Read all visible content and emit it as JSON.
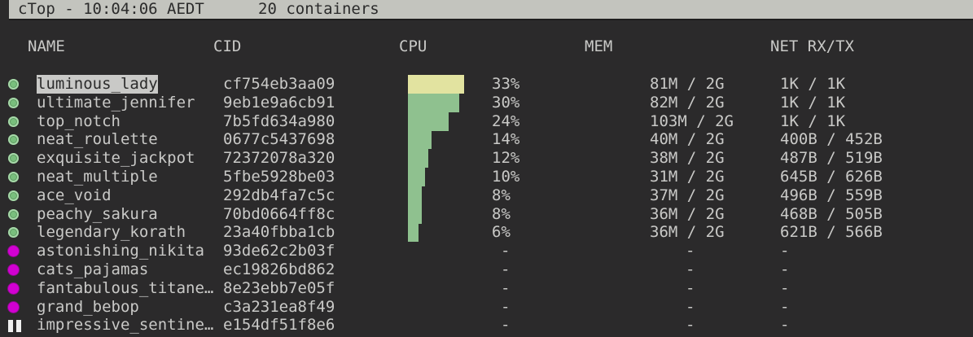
{
  "header": {
    "title": "cTop - 10:04:06 AEDT",
    "count": "20 containers"
  },
  "columns": {
    "name": "NAME",
    "cid": "CID",
    "cpu": "CPU",
    "mem": "MEM",
    "net": "NET RX/TX"
  },
  "colors": {
    "running": "#79bf7d",
    "stopped": "#d200d2",
    "paused": "#f0f0f0",
    "cpu_bar": "#8fc18f",
    "cpu_bar_selected": "#e2e3a0"
  },
  "containers": [
    {
      "status": "running",
      "name": "luminous_lady",
      "cid": "cf754eb3aa09",
      "cpu": "33%",
      "cpu_value": 33,
      "mem": "81M / 2G",
      "net": "1K / 1K",
      "selected": true
    },
    {
      "status": "running",
      "name": "ultimate_jennifer",
      "cid": "9eb1e9a6cb91",
      "cpu": "30%",
      "cpu_value": 30,
      "mem": "82M / 2G",
      "net": "1K / 1K"
    },
    {
      "status": "running",
      "name": "top_notch",
      "cid": "7b5fd634a980",
      "cpu": "24%",
      "cpu_value": 24,
      "mem": "103M / 2G",
      "net": "1K / 1K"
    },
    {
      "status": "running",
      "name": "neat_roulette",
      "cid": "0677c5437698",
      "cpu": "14%",
      "cpu_value": 14,
      "mem": "40M / 2G",
      "net": "400B / 452B"
    },
    {
      "status": "running",
      "name": "exquisite_jackpot",
      "cid": "72372078a320",
      "cpu": "12%",
      "cpu_value": 12,
      "mem": "38M / 2G",
      "net": "487B / 519B"
    },
    {
      "status": "running",
      "name": "neat_multiple",
      "cid": "5fbe5928be03",
      "cpu": "10%",
      "cpu_value": 10,
      "mem": "31M / 2G",
      "net": "645B / 626B"
    },
    {
      "status": "running",
      "name": "ace_void",
      "cid": "292db4fa7c5c",
      "cpu": "8%",
      "cpu_value": 8,
      "mem": "37M / 2G",
      "net": "496B / 559B"
    },
    {
      "status": "running",
      "name": "peachy_sakura",
      "cid": "70bd0664ff8c",
      "cpu": "8%",
      "cpu_value": 8,
      "mem": "36M / 2G",
      "net": "468B / 505B"
    },
    {
      "status": "running",
      "name": "legendary_korath",
      "cid": "23a40fbba1cb",
      "cpu": "6%",
      "cpu_value": 6,
      "mem": "36M / 2G",
      "net": "621B / 566B"
    },
    {
      "status": "stopped",
      "name": "astonishing_nikita",
      "cid": "93de62c2b03f",
      "cpu": "-",
      "mem": "-",
      "net": "-"
    },
    {
      "status": "stopped",
      "name": "cats_pajamas",
      "cid": "ec19826bd862",
      "cpu": "-",
      "mem": "-",
      "net": "-"
    },
    {
      "status": "stopped",
      "name": "fantabulous_titane…",
      "cid": "8e23ebb7e05f",
      "cpu": "-",
      "mem": "-",
      "net": "-"
    },
    {
      "status": "stopped",
      "name": "grand_bebop",
      "cid": "c3a231ea8f49",
      "cpu": "-",
      "mem": "-",
      "net": "-"
    },
    {
      "status": "paused",
      "name": "impressive_sentine…",
      "cid": "e154df51f8e6",
      "cpu": "-",
      "mem": "-",
      "net": "-"
    }
  ]
}
